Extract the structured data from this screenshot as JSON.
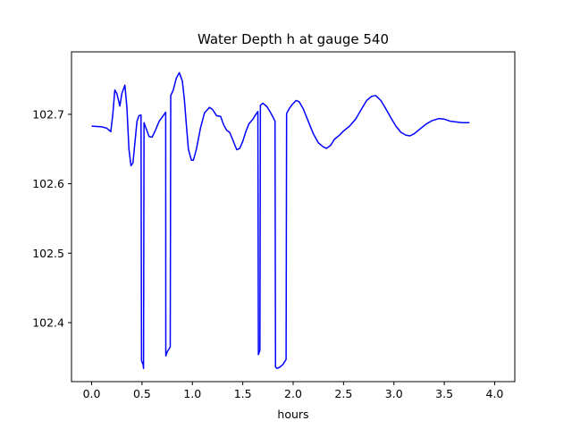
{
  "chart_data": {
    "type": "line",
    "title": "Water Depth h at gauge 540",
    "xlabel": "hours",
    "ylabel": "",
    "xlim": [
      -0.2,
      4.2
    ],
    "ylim": [
      102.315,
      102.79
    ],
    "xticks": [
      0.0,
      0.5,
      1.0,
      1.5,
      2.0,
      2.5,
      3.0,
      3.5,
      4.0
    ],
    "xtick_labels": [
      "0.0",
      "0.5",
      "1.0",
      "1.5",
      "2.0",
      "2.5",
      "3.0",
      "3.5",
      "4.0"
    ],
    "yticks": [
      102.4,
      102.5,
      102.6,
      102.7
    ],
    "ytick_labels": [
      "102.4",
      "102.5",
      "102.6",
      "102.7"
    ],
    "grid": false,
    "series": [
      {
        "color": "#0000ff",
        "points": [
          [
            0.0,
            102.683
          ],
          [
            0.1,
            102.682
          ],
          [
            0.15,
            102.68
          ],
          [
            0.19,
            102.675
          ],
          [
            0.21,
            102.7
          ],
          [
            0.23,
            102.735
          ],
          [
            0.25,
            102.73
          ],
          [
            0.28,
            102.712
          ],
          [
            0.3,
            102.73
          ],
          [
            0.33,
            102.742
          ],
          [
            0.35,
            102.71
          ],
          [
            0.37,
            102.65
          ],
          [
            0.39,
            102.626
          ],
          [
            0.41,
            102.63
          ],
          [
            0.43,
            102.66
          ],
          [
            0.45,
            102.69
          ],
          [
            0.47,
            102.698
          ],
          [
            0.49,
            102.699
          ],
          [
            0.495,
            102.345
          ],
          [
            0.51,
            102.34
          ],
          [
            0.515,
            102.334
          ],
          [
            0.52,
            102.688
          ],
          [
            0.54,
            102.68
          ],
          [
            0.57,
            102.668
          ],
          [
            0.6,
            102.667
          ],
          [
            0.63,
            102.676
          ],
          [
            0.67,
            102.69
          ],
          [
            0.7,
            102.696
          ],
          [
            0.72,
            102.7
          ],
          [
            0.735,
            102.703
          ],
          [
            0.736,
            102.352
          ],
          [
            0.75,
            102.358
          ],
          [
            0.78,
            102.365
          ],
          [
            0.785,
            102.727
          ],
          [
            0.81,
            102.735
          ],
          [
            0.84,
            102.752
          ],
          [
            0.87,
            102.76
          ],
          [
            0.9,
            102.748
          ],
          [
            0.92,
            102.722
          ],
          [
            0.94,
            102.685
          ],
          [
            0.96,
            102.65
          ],
          [
            0.99,
            102.634
          ],
          [
            1.01,
            102.634
          ],
          [
            1.04,
            102.65
          ],
          [
            1.08,
            102.68
          ],
          [
            1.12,
            102.702
          ],
          [
            1.17,
            102.71
          ],
          [
            1.2,
            102.707
          ],
          [
            1.24,
            102.698
          ],
          [
            1.28,
            102.697
          ],
          [
            1.31,
            102.685
          ],
          [
            1.34,
            102.677
          ],
          [
            1.37,
            102.674
          ],
          [
            1.41,
            102.66
          ],
          [
            1.44,
            102.649
          ],
          [
            1.47,
            102.651
          ],
          [
            1.5,
            102.661
          ],
          [
            1.53,
            102.675
          ],
          [
            1.56,
            102.686
          ],
          [
            1.6,
            102.693
          ],
          [
            1.63,
            102.7
          ],
          [
            1.65,
            102.704
          ],
          [
            1.655,
            102.354
          ],
          [
            1.67,
            102.36
          ],
          [
            1.675,
            102.713
          ],
          [
            1.7,
            102.716
          ],
          [
            1.74,
            102.711
          ],
          [
            1.77,
            102.704
          ],
          [
            1.8,
            102.696
          ],
          [
            1.82,
            102.69
          ],
          [
            1.825,
            102.336
          ],
          [
            1.84,
            102.334
          ],
          [
            1.87,
            102.336
          ],
          [
            1.9,
            102.34
          ],
          [
            1.93,
            102.347
          ],
          [
            1.935,
            102.701
          ],
          [
            1.96,
            102.708
          ],
          [
            1.99,
            102.714
          ],
          [
            2.03,
            102.72
          ],
          [
            2.06,
            102.718
          ],
          [
            2.1,
            102.708
          ],
          [
            2.15,
            102.69
          ],
          [
            2.2,
            102.672
          ],
          [
            2.25,
            102.659
          ],
          [
            2.3,
            102.653
          ],
          [
            2.33,
            102.651
          ],
          [
            2.37,
            102.655
          ],
          [
            2.41,
            102.664
          ],
          [
            2.46,
            102.67
          ],
          [
            2.5,
            102.676
          ],
          [
            2.56,
            102.683
          ],
          [
            2.62,
            102.693
          ],
          [
            2.68,
            102.708
          ],
          [
            2.73,
            102.72
          ],
          [
            2.78,
            102.726
          ],
          [
            2.82,
            102.727
          ],
          [
            2.87,
            102.72
          ],
          [
            2.92,
            102.708
          ],
          [
            2.97,
            102.695
          ],
          [
            3.02,
            102.683
          ],
          [
            3.07,
            102.674
          ],
          [
            3.12,
            102.67
          ],
          [
            3.16,
            102.669
          ],
          [
            3.2,
            102.672
          ],
          [
            3.26,
            102.679
          ],
          [
            3.32,
            102.686
          ],
          [
            3.38,
            102.691
          ],
          [
            3.45,
            102.694
          ],
          [
            3.5,
            102.693
          ],
          [
            3.56,
            102.69
          ],
          [
            3.62,
            102.689
          ],
          [
            3.68,
            102.688
          ],
          [
            3.75,
            102.688
          ]
        ]
      }
    ]
  }
}
